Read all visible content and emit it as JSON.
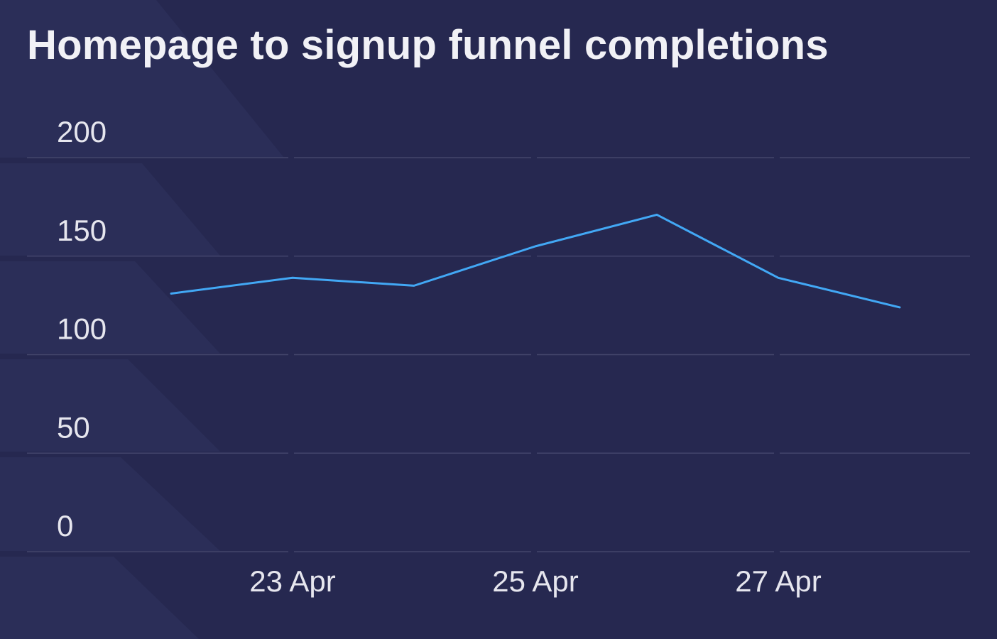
{
  "title": "Homepage to signup funnel completions",
  "colors": {
    "background": "#262850",
    "decor": "#2b2e58",
    "grid": "#43456b",
    "line": "#42a8f5",
    "text": "#e6e6ee"
  },
  "chart_data": {
    "type": "line",
    "title": "Homepage to signup funnel completions",
    "xlabel": "",
    "ylabel": "",
    "x": [
      "2024-04-22",
      "2024-04-23",
      "2024-04-24",
      "2024-04-25",
      "2024-04-26",
      "2024-04-27",
      "2024-04-28"
    ],
    "series": [
      {
        "values": [
          131,
          139,
          135,
          155,
          171,
          139,
          124
        ]
      }
    ],
    "ylim": [
      0,
      200
    ],
    "yticks": [
      0,
      50,
      100,
      150,
      200
    ],
    "ytick_labels": [
      "0",
      "50",
      "100",
      "150",
      "200"
    ],
    "xticks": [
      "2024-04-23",
      "2024-04-25",
      "2024-04-27"
    ],
    "xtick_labels": [
      "23 Apr",
      "25 Apr",
      "27 Apr"
    ],
    "grid": true,
    "legend": "none"
  }
}
